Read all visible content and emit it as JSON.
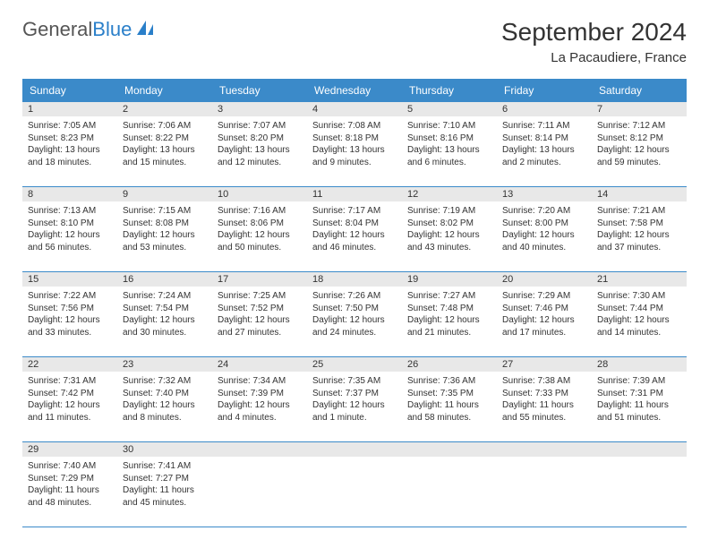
{
  "logo": {
    "text1": "General",
    "text2": "Blue"
  },
  "title": "September 2024",
  "location": "La Pacaudiere, France",
  "header_bg": "#3b8ac9",
  "daynum_bg": "#e8e8e8",
  "border_color": "#3b8ac9",
  "days_of_week": [
    "Sunday",
    "Monday",
    "Tuesday",
    "Wednesday",
    "Thursday",
    "Friday",
    "Saturday"
  ],
  "weeks": [
    [
      {
        "n": "1",
        "sr": "Sunrise: 7:05 AM",
        "ss": "Sunset: 8:23 PM",
        "d1": "Daylight: 13 hours",
        "d2": "and 18 minutes."
      },
      {
        "n": "2",
        "sr": "Sunrise: 7:06 AM",
        "ss": "Sunset: 8:22 PM",
        "d1": "Daylight: 13 hours",
        "d2": "and 15 minutes."
      },
      {
        "n": "3",
        "sr": "Sunrise: 7:07 AM",
        "ss": "Sunset: 8:20 PM",
        "d1": "Daylight: 13 hours",
        "d2": "and 12 minutes."
      },
      {
        "n": "4",
        "sr": "Sunrise: 7:08 AM",
        "ss": "Sunset: 8:18 PM",
        "d1": "Daylight: 13 hours",
        "d2": "and 9 minutes."
      },
      {
        "n": "5",
        "sr": "Sunrise: 7:10 AM",
        "ss": "Sunset: 8:16 PM",
        "d1": "Daylight: 13 hours",
        "d2": "and 6 minutes."
      },
      {
        "n": "6",
        "sr": "Sunrise: 7:11 AM",
        "ss": "Sunset: 8:14 PM",
        "d1": "Daylight: 13 hours",
        "d2": "and 2 minutes."
      },
      {
        "n": "7",
        "sr": "Sunrise: 7:12 AM",
        "ss": "Sunset: 8:12 PM",
        "d1": "Daylight: 12 hours",
        "d2": "and 59 minutes."
      }
    ],
    [
      {
        "n": "8",
        "sr": "Sunrise: 7:13 AM",
        "ss": "Sunset: 8:10 PM",
        "d1": "Daylight: 12 hours",
        "d2": "and 56 minutes."
      },
      {
        "n": "9",
        "sr": "Sunrise: 7:15 AM",
        "ss": "Sunset: 8:08 PM",
        "d1": "Daylight: 12 hours",
        "d2": "and 53 minutes."
      },
      {
        "n": "10",
        "sr": "Sunrise: 7:16 AM",
        "ss": "Sunset: 8:06 PM",
        "d1": "Daylight: 12 hours",
        "d2": "and 50 minutes."
      },
      {
        "n": "11",
        "sr": "Sunrise: 7:17 AM",
        "ss": "Sunset: 8:04 PM",
        "d1": "Daylight: 12 hours",
        "d2": "and 46 minutes."
      },
      {
        "n": "12",
        "sr": "Sunrise: 7:19 AM",
        "ss": "Sunset: 8:02 PM",
        "d1": "Daylight: 12 hours",
        "d2": "and 43 minutes."
      },
      {
        "n": "13",
        "sr": "Sunrise: 7:20 AM",
        "ss": "Sunset: 8:00 PM",
        "d1": "Daylight: 12 hours",
        "d2": "and 40 minutes."
      },
      {
        "n": "14",
        "sr": "Sunrise: 7:21 AM",
        "ss": "Sunset: 7:58 PM",
        "d1": "Daylight: 12 hours",
        "d2": "and 37 minutes."
      }
    ],
    [
      {
        "n": "15",
        "sr": "Sunrise: 7:22 AM",
        "ss": "Sunset: 7:56 PM",
        "d1": "Daylight: 12 hours",
        "d2": "and 33 minutes."
      },
      {
        "n": "16",
        "sr": "Sunrise: 7:24 AM",
        "ss": "Sunset: 7:54 PM",
        "d1": "Daylight: 12 hours",
        "d2": "and 30 minutes."
      },
      {
        "n": "17",
        "sr": "Sunrise: 7:25 AM",
        "ss": "Sunset: 7:52 PM",
        "d1": "Daylight: 12 hours",
        "d2": "and 27 minutes."
      },
      {
        "n": "18",
        "sr": "Sunrise: 7:26 AM",
        "ss": "Sunset: 7:50 PM",
        "d1": "Daylight: 12 hours",
        "d2": "and 24 minutes."
      },
      {
        "n": "19",
        "sr": "Sunrise: 7:27 AM",
        "ss": "Sunset: 7:48 PM",
        "d1": "Daylight: 12 hours",
        "d2": "and 21 minutes."
      },
      {
        "n": "20",
        "sr": "Sunrise: 7:29 AM",
        "ss": "Sunset: 7:46 PM",
        "d1": "Daylight: 12 hours",
        "d2": "and 17 minutes."
      },
      {
        "n": "21",
        "sr": "Sunrise: 7:30 AM",
        "ss": "Sunset: 7:44 PM",
        "d1": "Daylight: 12 hours",
        "d2": "and 14 minutes."
      }
    ],
    [
      {
        "n": "22",
        "sr": "Sunrise: 7:31 AM",
        "ss": "Sunset: 7:42 PM",
        "d1": "Daylight: 12 hours",
        "d2": "and 11 minutes."
      },
      {
        "n": "23",
        "sr": "Sunrise: 7:32 AM",
        "ss": "Sunset: 7:40 PM",
        "d1": "Daylight: 12 hours",
        "d2": "and 8 minutes."
      },
      {
        "n": "24",
        "sr": "Sunrise: 7:34 AM",
        "ss": "Sunset: 7:39 PM",
        "d1": "Daylight: 12 hours",
        "d2": "and 4 minutes."
      },
      {
        "n": "25",
        "sr": "Sunrise: 7:35 AM",
        "ss": "Sunset: 7:37 PM",
        "d1": "Daylight: 12 hours",
        "d2": "and 1 minute."
      },
      {
        "n": "26",
        "sr": "Sunrise: 7:36 AM",
        "ss": "Sunset: 7:35 PM",
        "d1": "Daylight: 11 hours",
        "d2": "and 58 minutes."
      },
      {
        "n": "27",
        "sr": "Sunrise: 7:38 AM",
        "ss": "Sunset: 7:33 PM",
        "d1": "Daylight: 11 hours",
        "d2": "and 55 minutes."
      },
      {
        "n": "28",
        "sr": "Sunrise: 7:39 AM",
        "ss": "Sunset: 7:31 PM",
        "d1": "Daylight: 11 hours",
        "d2": "and 51 minutes."
      }
    ],
    [
      {
        "n": "29",
        "sr": "Sunrise: 7:40 AM",
        "ss": "Sunset: 7:29 PM",
        "d1": "Daylight: 11 hours",
        "d2": "and 48 minutes."
      },
      {
        "n": "30",
        "sr": "Sunrise: 7:41 AM",
        "ss": "Sunset: 7:27 PM",
        "d1": "Daylight: 11 hours",
        "d2": "and 45 minutes."
      },
      null,
      null,
      null,
      null,
      null
    ]
  ]
}
